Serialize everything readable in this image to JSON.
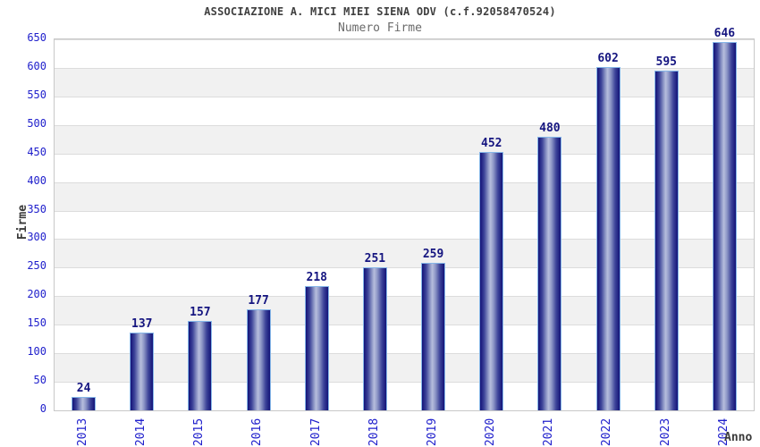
{
  "chart_data": {
    "type": "bar",
    "title": "ASSOCIAZIONE A. MICI MIEI SIENA ODV (c.f.92058470524)",
    "subtitle": "Numero Firme",
    "xlabel": "Anno",
    "ylabel": "Firme",
    "categories": [
      "2013",
      "2014",
      "2015",
      "2016",
      "2017",
      "2018",
      "2019",
      "2020",
      "2021",
      "2022",
      "2023",
      "2024"
    ],
    "values": [
      24,
      137,
      157,
      177,
      218,
      251,
      259,
      452,
      480,
      602,
      595,
      646
    ],
    "ylim": [
      0,
      650
    ],
    "ytick_step": 50,
    "grid": "alternating-horizontal-bands",
    "legend": "none",
    "colors": {
      "tick_label_blue": "#2020cc",
      "value_label_navy": "#151580",
      "title_gray": "#404040",
      "subtitle_gray": "#6a6a6a",
      "axis_label_gray": "#3a3a3a",
      "band_light": "#ffffff",
      "band_dark": "#f1f1f1",
      "gridline": "#dcdcdc",
      "plot_border": "#c8c8c8",
      "bar_edge_dark": "#131378",
      "bar_mid": "#8d96c6",
      "bar_highlight": "#b7bedd",
      "bar_border_lightblue": "#85b6e8"
    }
  }
}
